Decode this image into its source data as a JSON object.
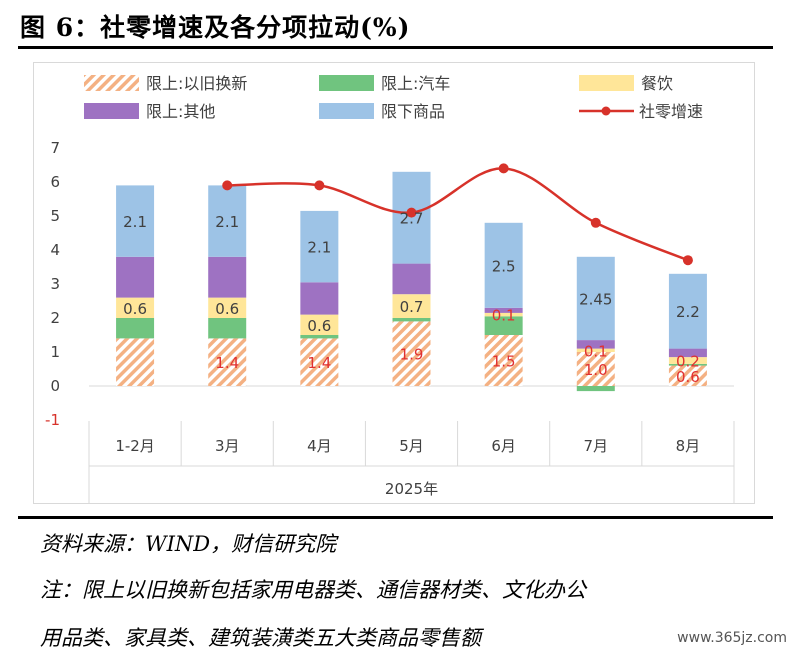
{
  "figure": {
    "title": "图 6：社零增速及各分项拉动(%)",
    "source": "资料来源：WIND，财信研究院",
    "note_line1": "注：限上以旧换新包括家用电器类、通信器材类、文化办公",
    "note_line2": "用品类、家具类、建筑装潢类五大类商品零售额",
    "watermark": "www.365jz.com"
  },
  "colors": {
    "trade_in": "#f4b183",
    "auto": "#70c47f",
    "catering": "#ffe699",
    "other": "#9e72c2",
    "below_limit": "#9dc3e6",
    "line": "#d7322a",
    "value_label_red": "#e03030",
    "value_label_dark": "#404040"
  },
  "chart_data": {
    "type": "bar",
    "stacked": true,
    "categories": [
      "1-2月",
      "3月",
      "4月",
      "5月",
      "6月",
      "7月",
      "8月"
    ],
    "xlabel": "2025年",
    "ylabel": "",
    "ylim": [
      -1,
      7
    ],
    "yticks": [
      -1,
      0,
      1,
      2,
      3,
      4,
      5,
      6,
      7
    ],
    "grid": false,
    "legend_position": "top",
    "series": [
      {
        "name": "限上:以旧换新",
        "kind": "bar",
        "color_key": "trade_in",
        "pattern": "hatch",
        "values": [
          1.4,
          1.4,
          1.4,
          1.9,
          1.5,
          1.0,
          0.6
        ],
        "labels": [
          "",
          "1.4",
          "1.4",
          "1.9",
          "1.5",
          "1.0",
          "0.6"
        ]
      },
      {
        "name": "限上:汽车",
        "kind": "bar",
        "color_key": "auto",
        "values": [
          0.6,
          0.6,
          0.1,
          0.1,
          0.55,
          -0.15,
          0.05
        ],
        "labels": [
          "",
          "",
          "",
          "",
          "",
          "",
          ""
        ]
      },
      {
        "name": "餐饮",
        "kind": "bar",
        "color_key": "catering",
        "values": [
          0.6,
          0.6,
          0.6,
          0.7,
          0.1,
          0.1,
          0.2
        ],
        "labels": [
          "0.6",
          "0.6",
          "0.6",
          "0.7",
          "0.1",
          "0.1",
          "0.2"
        ]
      },
      {
        "name": "限上:其他",
        "kind": "bar",
        "color_key": "other",
        "values": [
          1.2,
          1.2,
          0.95,
          0.9,
          0.15,
          0.25,
          0.25
        ],
        "labels": [
          "",
          "",
          "",
          "",
          "",
          "",
          ""
        ]
      },
      {
        "name": "限下商品",
        "kind": "bar",
        "color_key": "below_limit",
        "values": [
          2.1,
          2.1,
          2.1,
          2.7,
          2.5,
          2.45,
          2.2
        ],
        "labels": [
          "2.1",
          "2.1",
          "2.1",
          "2.7",
          "2.5",
          "2.45",
          "2.2"
        ]
      },
      {
        "name": "社零增速",
        "kind": "line",
        "color_key": "line",
        "values": [
          null,
          5.9,
          5.9,
          5.1,
          6.4,
          4.8,
          3.7
        ]
      }
    ]
  }
}
